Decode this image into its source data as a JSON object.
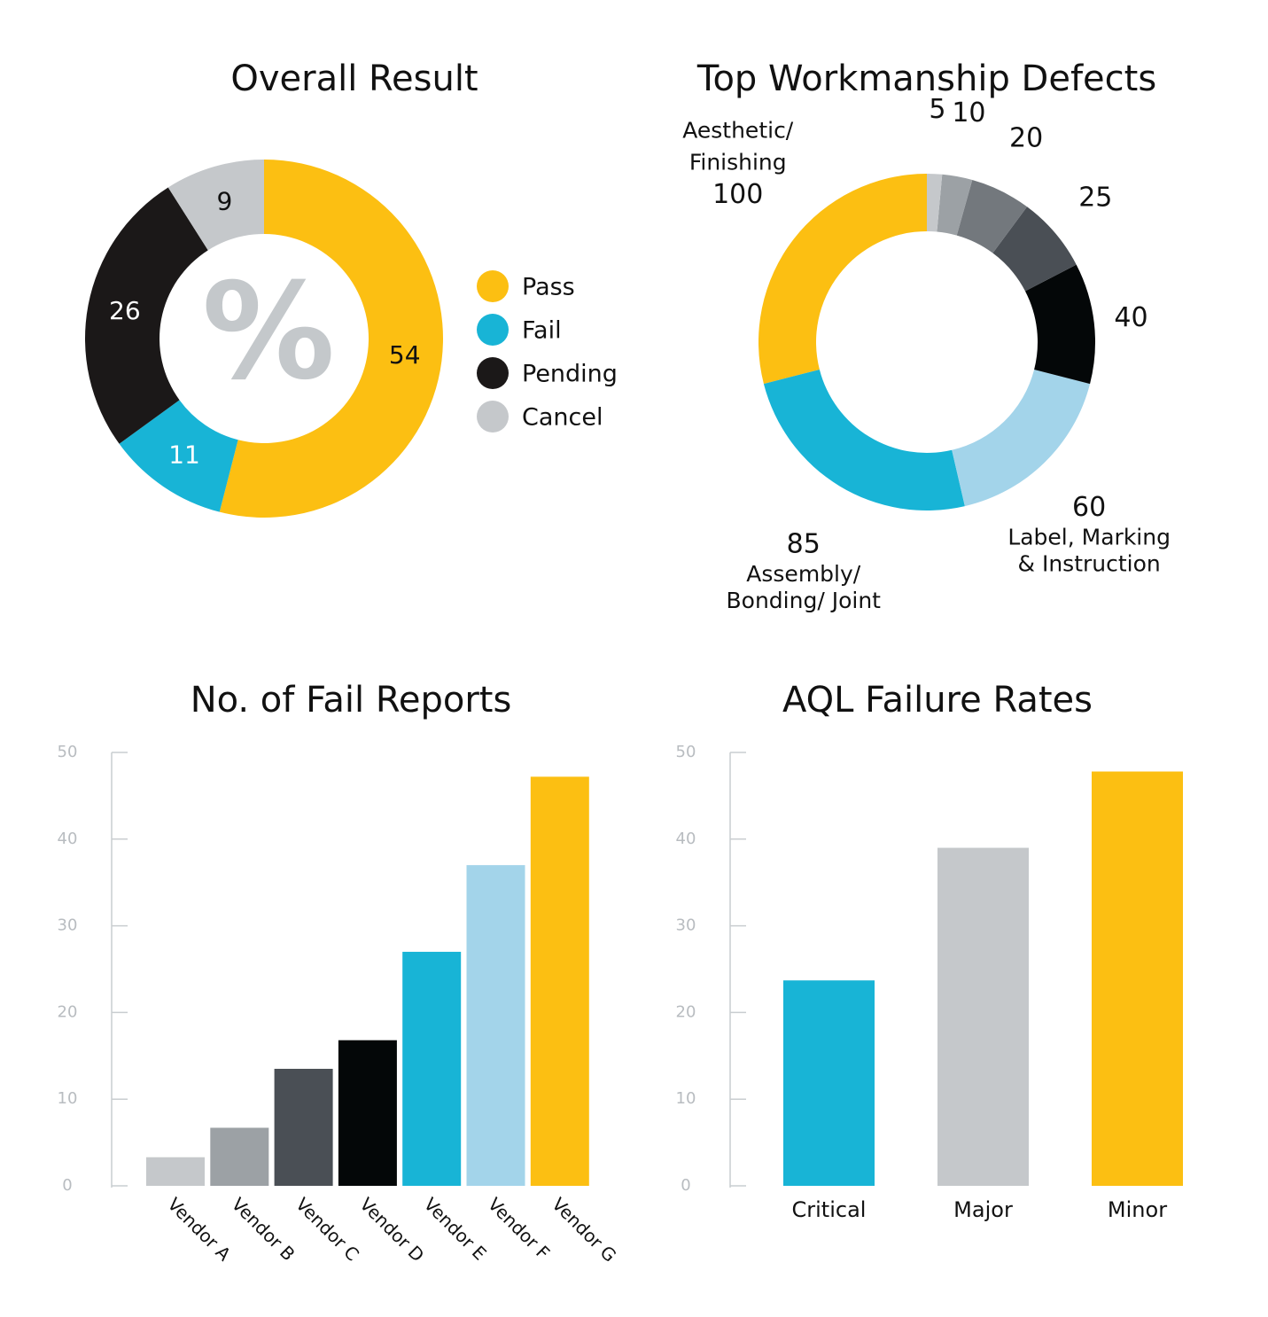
{
  "chart_data": [
    {
      "type": "pie",
      "variant": "donut",
      "title": "Overall Result",
      "center_symbol": "%",
      "legend_position": "right",
      "categories": [
        "Pass",
        "Fail",
        "Pending",
        "Cancel"
      ],
      "values": [
        54,
        11,
        26,
        9
      ],
      "colors": [
        "#fcbf12",
        "#18b4d6",
        "#1b1818",
        "#c5c8cb"
      ],
      "label_colors": [
        "#111111",
        "#ffffff",
        "#ffffff",
        "#111111"
      ]
    },
    {
      "type": "pie",
      "variant": "donut",
      "title": "Top Workmanship Defects",
      "categories": [
        "Aesthetic/ Finishing",
        "Assembly/ Bonding/ Joint",
        "Label, Marking & Instruction",
        "",
        "",
        "",
        "",
        ""
      ],
      "category_lines": [
        [
          "Aesthetic/",
          "Finishing"
        ],
        [
          "Assembly/",
          "Bonding/ Joint"
        ],
        [
          "Label, Marking",
          "& Instruction"
        ],
        [],
        [],
        [],
        [],
        []
      ],
      "values": [
        100,
        85,
        60,
        40,
        25,
        20,
        10,
        5
      ],
      "value_labels": [
        "100",
        "85",
        "60",
        "40",
        "25",
        "20",
        "10",
        "5"
      ],
      "colors": [
        "#fcbf12",
        "#18b4d6",
        "#a3d4ea",
        "#040708",
        "#4a4f55",
        "#73787d",
        "#9ca1a5",
        "#c5c8cb"
      ]
    },
    {
      "type": "bar",
      "title": "No. of Fail Reports",
      "categories": [
        "Vendor A",
        "Vendor B",
        "Vendor C",
        "Vendor D",
        "Vendor E",
        "Vendor F",
        "Vendor G"
      ],
      "values": [
        3.3,
        6.7,
        13.5,
        16.8,
        27,
        37,
        47.2
      ],
      "colors": [
        "#c5c8cb",
        "#9ca1a5",
        "#4a4f55",
        "#040708",
        "#18b4d6",
        "#a3d4ea",
        "#fcbf12"
      ],
      "ylim": [
        0,
        50
      ],
      "yticks": [
        0,
        10,
        20,
        30,
        40,
        50
      ],
      "grid": false
    },
    {
      "type": "bar",
      "title": "AQL Failure Rates",
      "categories": [
        "Critical",
        "Major",
        "Minor"
      ],
      "values": [
        23.7,
        39,
        47.8
      ],
      "colors": [
        "#18b4d6",
        "#c5c8cb",
        "#fcbf12"
      ],
      "ylim": [
        0,
        50
      ],
      "yticks": [
        0,
        10,
        20,
        30,
        40,
        50
      ],
      "grid": false
    }
  ]
}
